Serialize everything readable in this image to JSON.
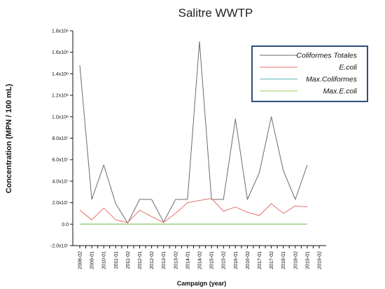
{
  "chart_data": {
    "type": "line",
    "title": "Salitre WWTP",
    "xlabel": "Campaign (year)",
    "ylabel": "Concentration (MPN / 100 mL)",
    "ylim": [
      -20000000,
      180000000
    ],
    "y_ticks": [
      {
        "value": -20000000,
        "label": "-2.0x10⁷"
      },
      {
        "value": 0,
        "label": "0.0"
      },
      {
        "value": 20000000,
        "label": "2.0x10⁷"
      },
      {
        "value": 40000000,
        "label": "4.0x10⁷"
      },
      {
        "value": 60000000,
        "label": "6.0x10⁷"
      },
      {
        "value": 80000000,
        "label": "8.0x10⁷"
      },
      {
        "value": 100000000,
        "label": "1.0x10⁸"
      },
      {
        "value": 120000000,
        "label": "1.2x10⁸"
      },
      {
        "value": 140000000,
        "label": "1.4x10⁸"
      },
      {
        "value": 160000000,
        "label": "1.6x10⁸"
      },
      {
        "value": 180000000,
        "label": "1.8x10⁸"
      }
    ],
    "x_points": [
      "2008-02",
      "",
      "2009-01",
      "",
      "2010-01",
      "",
      "2011-01",
      "",
      "2011-02",
      "",
      "2012-01",
      "",
      "2012-02",
      "",
      "2013-01",
      "",
      "2013-02",
      "",
      "2014-01",
      "",
      "2014-02",
      "",
      "2015-01",
      "",
      "2015-02",
      "",
      "2016-01",
      "",
      "2016-02",
      "",
      "2017-01",
      "",
      "2017-02",
      "",
      "2018-01",
      "",
      "2018-02",
      "",
      "2019-01",
      "",
      "2019-02"
    ],
    "legend_position": "top-right",
    "series": [
      {
        "name": "Coliformes Totales",
        "color": "#6b6b6b",
        "values": [
          148000000,
          null,
          23000000,
          null,
          55000000,
          null,
          19000000,
          null,
          1000000,
          null,
          23000000,
          null,
          23000000,
          null,
          2000000,
          null,
          23000000,
          null,
          23000000,
          null,
          170000000,
          null,
          23000000,
          null,
          23000000,
          null,
          98000000,
          null,
          23000000,
          null,
          48000000,
          null,
          100000000,
          null,
          50000000,
          null,
          23000000,
          null,
          55000000
        ]
      },
      {
        "name": "E.coli",
        "color": "#e8706a",
        "values": [
          13000000,
          null,
          4000000,
          null,
          15000000,
          null,
          4000000,
          null,
          1500000,
          null,
          13000000,
          null,
          7000000,
          null,
          1500000,
          null,
          10000000,
          null,
          20000000,
          null,
          22000000,
          null,
          24000000,
          null,
          12000000,
          null,
          16000000,
          null,
          11000000,
          null,
          8000000,
          null,
          19000000,
          null,
          10000000,
          null,
          17000000,
          null,
          16000000
        ]
      },
      {
        "name": "Max.Coliformes",
        "color": "#5ab0b0",
        "values": [
          0,
          null,
          0,
          null,
          0,
          null,
          0,
          null,
          0,
          null,
          0,
          null,
          0,
          null,
          0,
          null,
          0,
          null,
          0,
          null,
          0,
          null,
          0,
          null,
          0,
          null,
          0,
          null,
          0,
          null,
          0,
          null,
          0,
          null,
          0,
          null,
          0,
          null,
          0
        ]
      },
      {
        "name": "Max.E.coli",
        "color": "#9acd5a",
        "values": [
          0,
          null,
          0,
          null,
          0,
          null,
          0,
          null,
          0,
          null,
          0,
          null,
          0,
          null,
          0,
          null,
          0,
          null,
          0,
          null,
          0,
          null,
          0,
          null,
          0,
          null,
          0,
          null,
          0,
          null,
          0,
          null,
          0,
          null,
          0,
          null,
          0,
          null,
          0
        ]
      }
    ]
  }
}
